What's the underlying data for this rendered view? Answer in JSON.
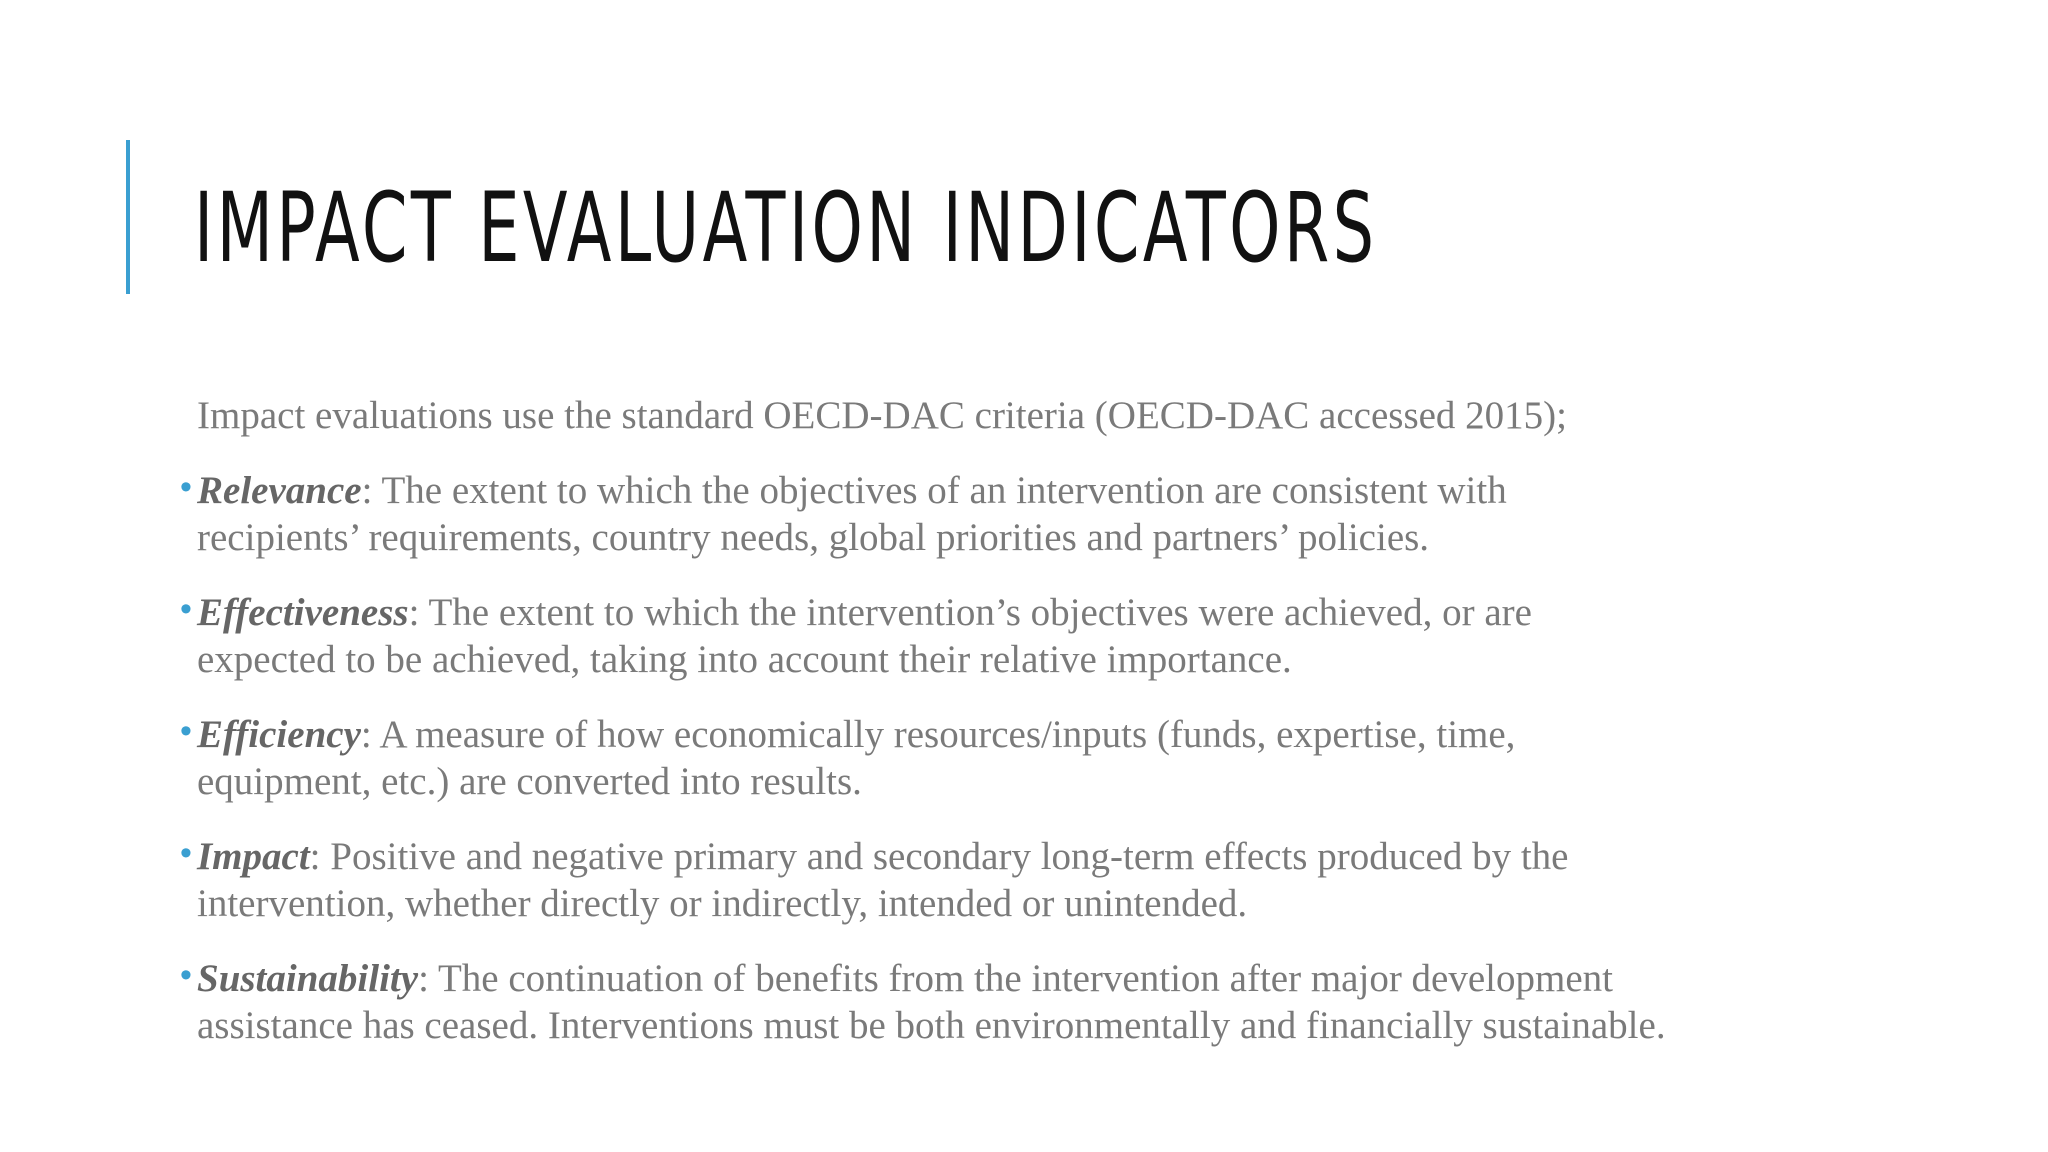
{
  "slide": {
    "title": "IMPACT EVALUATION INDICATORS",
    "intro": "Impact evaluations use the standard OECD-DAC criteria (OECD-DAC accessed 2015);",
    "bullet_glyph": "•",
    "items": [
      {
        "term": "Relevance",
        "line1": ": The extent to which the objectives of an intervention are consistent with",
        "line2": "recipients’ requirements, country needs, global priorities and partners’ policies."
      },
      {
        "term": "Effectiveness",
        "line1": ": The extent to which the intervention’s objectives were achieved, or are",
        "line2": "expected to be achieved, taking into account their relative importance."
      },
      {
        "term": "Efficiency",
        "line1": ": A measure of how economically resources/inputs (funds, expertise, time,",
        "line2": "equipment, etc.) are converted into results."
      },
      {
        "term": "Impact",
        "line1": ": Positive and negative primary and secondary long-term effects produced by the",
        "line2": "intervention, whether directly or indirectly, intended or unintended."
      },
      {
        "term": "Sustainability",
        "line1": ": The continuation of benefits from the intervention after major development",
        "line2": "assistance has ceased. Interventions must be both environmentally and financially sustainable."
      }
    ]
  },
  "colors": {
    "accent": "#3a9fd1",
    "title": "#111111",
    "body_text": "#7a7a7a",
    "term_text": "#666666",
    "background": "#ffffff"
  }
}
